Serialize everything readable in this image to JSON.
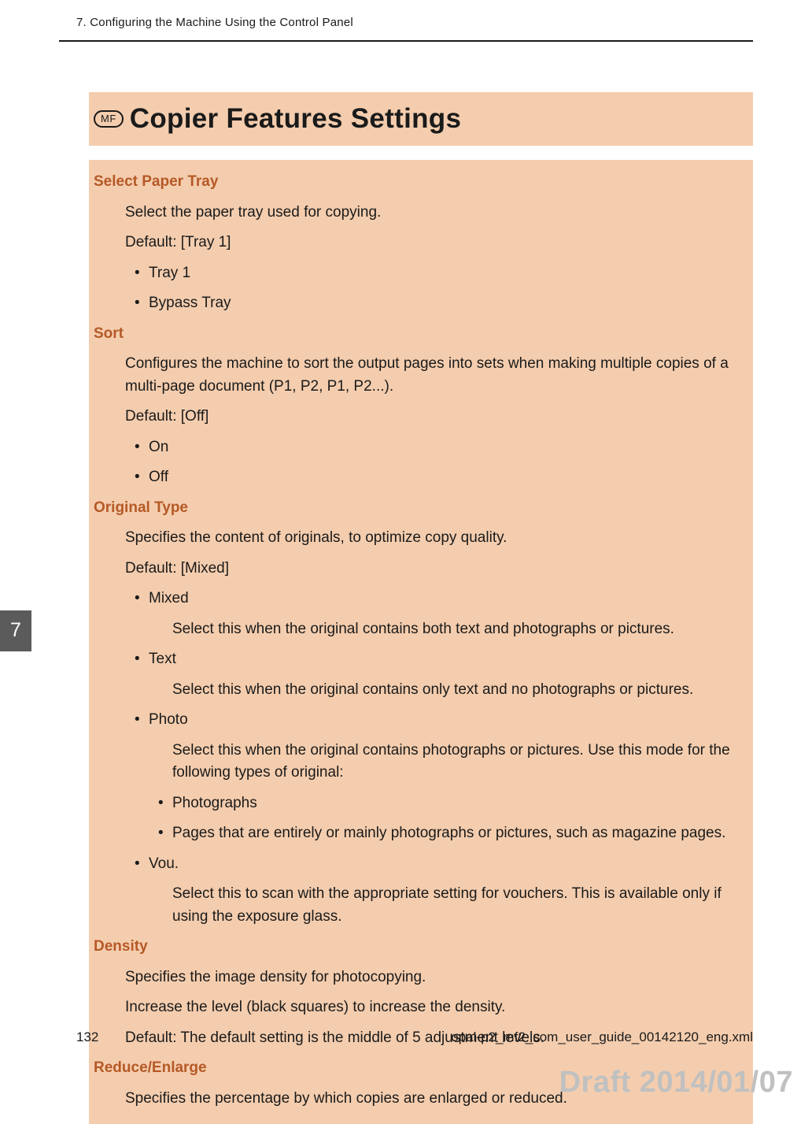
{
  "running_header": "7. Configuring the Machine Using the Control Panel",
  "mf_badge": "MF",
  "page_title": "Copier Features Settings",
  "side_tab": "7",
  "sections": {
    "select_paper_tray": {
      "title": "Select Paper Tray",
      "desc": "Select the paper tray used for copying.",
      "default": "Default: [Tray 1]",
      "options": [
        "Tray 1",
        "Bypass Tray"
      ]
    },
    "sort": {
      "title": "Sort",
      "desc": "Configures the machine to sort the output pages into sets when making multiple copies of a multi-page document (P1, P2, P1, P2...).",
      "default": "Default: [Off]",
      "options": [
        "On",
        "Off"
      ]
    },
    "original_type": {
      "title": "Original Type",
      "desc": "Specifies the content of originals, to optimize copy quality.",
      "default": "Default: [Mixed]",
      "options": {
        "mixed": {
          "label": "Mixed",
          "desc": "Select this when the original contains both text and photographs or pictures."
        },
        "text": {
          "label": "Text",
          "desc": "Select this when the original contains only text and no photographs or pictures."
        },
        "photo": {
          "label": "Photo",
          "desc": "Select this when the original contains photographs or pictures. Use this mode for the following types of original:",
          "subitems": [
            "Photographs",
            "Pages that are entirely or mainly photographs or pictures, such as magazine pages."
          ]
        },
        "vou": {
          "label": "Vou.",
          "desc": "Select this to scan with the appropriate setting for vouchers. This is available only if using the exposure glass."
        }
      }
    },
    "density": {
      "title": "Density",
      "desc1": "Specifies the image density for photocopying.",
      "desc2": "Increase the level (black squares) to increase the density.",
      "default": "Default: The default setting is the middle of 5 adjustment levels."
    },
    "reduce_enlarge": {
      "title": "Reduce/Enlarge",
      "desc": "Specifies the percentage by which copies are enlarged or reduced."
    }
  },
  "footer": {
    "page_number": "132",
    "filename": "opal-p2_mf2_com_user_guide_00142120_eng.xml"
  },
  "draft_stamp": "Draft 2014/01/07",
  "colors": {
    "panel_bg": "#f4cdae",
    "accent": "#b55926",
    "tab_bg": "#5b5b5b",
    "draft": "#c0c0c0",
    "text": "#1a1a1a"
  },
  "typography": {
    "title_fontsize": 35,
    "body_fontsize": 19,
    "header_fontsize": 15,
    "draft_fontsize": 38
  }
}
